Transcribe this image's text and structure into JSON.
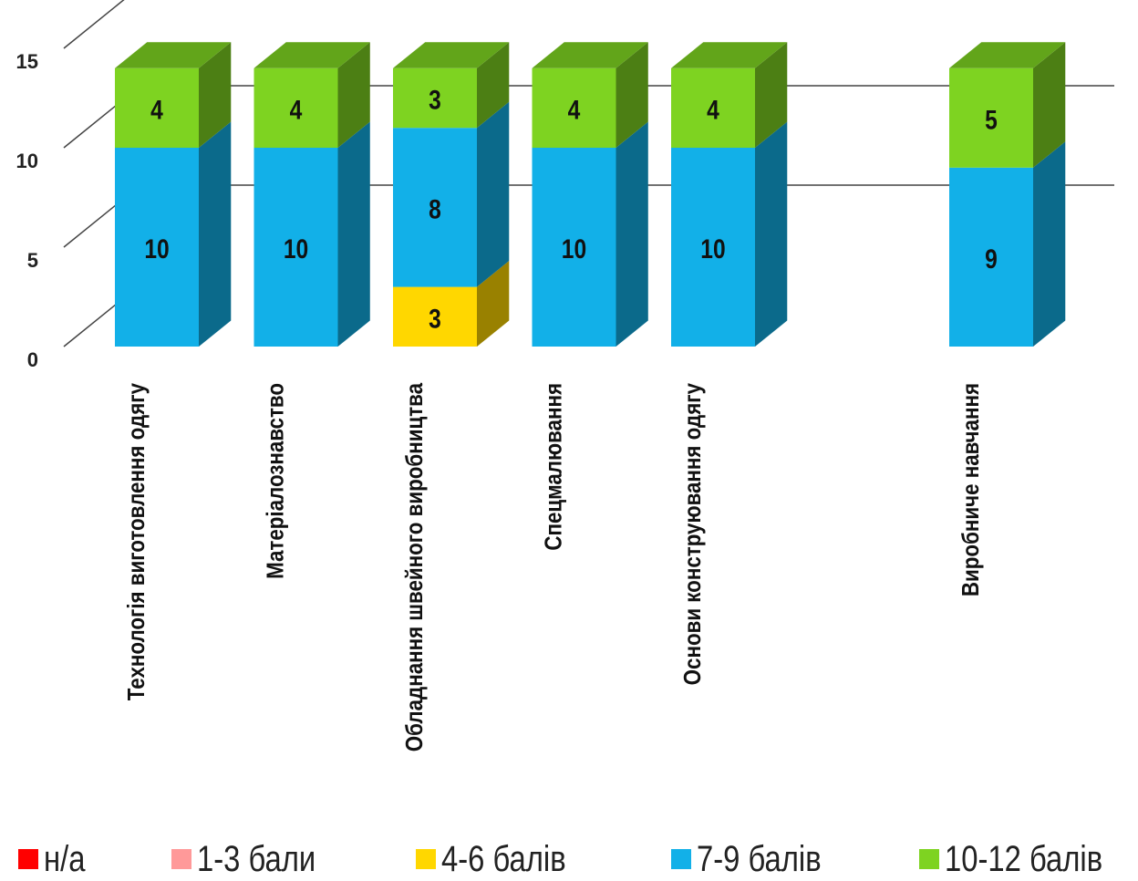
{
  "chart_data": {
    "type": "bar",
    "stacked": true,
    "three_d": true,
    "categories": [
      "Технологія виготовлення одягу",
      "Матеріалознавство",
      "Обладнання швейного виробництва",
      "Спецмалювання",
      "Основи конструювання одягу",
      "",
      "Виробниче навчання"
    ],
    "series": [
      {
        "name": "н/а",
        "color": "#ff0000",
        "values": [
          0,
          0,
          0,
          0,
          0,
          0,
          0
        ]
      },
      {
        "name": "1-3 бали",
        "color": "#ff9999",
        "values": [
          0,
          0,
          0,
          0,
          0,
          0,
          0
        ]
      },
      {
        "name": "4-6 балів",
        "color": "#ffd700",
        "values": [
          0,
          0,
          3,
          0,
          0,
          0,
          0
        ]
      },
      {
        "name": "7-9 балів",
        "color": "#12b0e8",
        "values": [
          10,
          10,
          8,
          10,
          10,
          0,
          9
        ]
      },
      {
        "name": "10-12 балів",
        "color": "#7ed321",
        "values": [
          4,
          4,
          3,
          4,
          4,
          0,
          5
        ]
      }
    ],
    "y_ticks": [
      "0",
      "5",
      "10",
      "15"
    ],
    "ylim": [
      0,
      15
    ],
    "grid": true,
    "legend_position": "bottom"
  }
}
